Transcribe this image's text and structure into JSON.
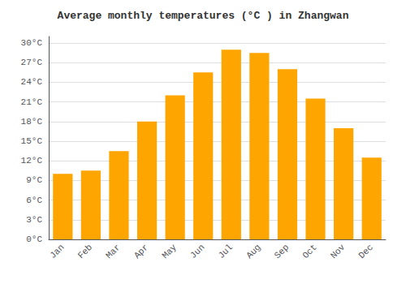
{
  "chart_data": {
    "type": "bar",
    "title": "Average monthly temperatures (°C ) in Zhangwan",
    "categories": [
      "Jan",
      "Feb",
      "Mar",
      "Apr",
      "May",
      "Jun",
      "Jul",
      "Aug",
      "Sep",
      "Oct",
      "Nov",
      "Dec"
    ],
    "values": [
      10.0,
      10.5,
      13.5,
      18.0,
      22.0,
      25.5,
      29.0,
      28.5,
      26.0,
      21.5,
      17.0,
      12.5
    ],
    "color": "#FFA500",
    "ylim": [
      0,
      31
    ],
    "yticks": [
      {
        "value": 0,
        "label": "0°C"
      },
      {
        "value": 3,
        "label": "3°C"
      },
      {
        "value": 6,
        "label": "6°C"
      },
      {
        "value": 9,
        "label": "9°C"
      },
      {
        "value": 12,
        "label": "12°C"
      },
      {
        "value": 15,
        "label": "15°C"
      },
      {
        "value": 18,
        "label": "18°C"
      },
      {
        "value": 21,
        "label": "21°C"
      },
      {
        "value": 24,
        "label": "24°C"
      },
      {
        "value": 27,
        "label": "27°C"
      },
      {
        "value": 30,
        "label": "30°C"
      }
    ],
    "grid": true
  }
}
